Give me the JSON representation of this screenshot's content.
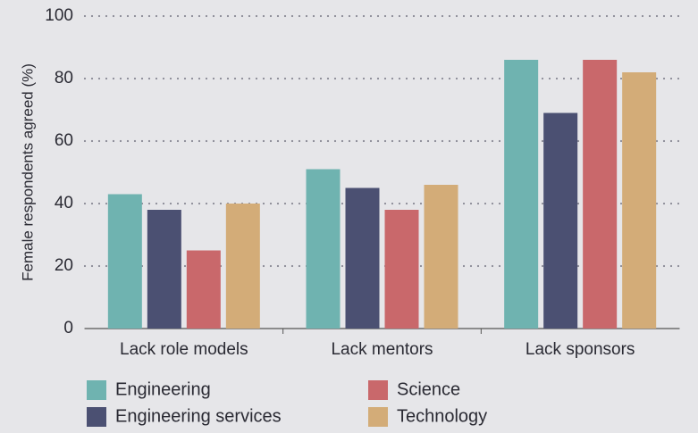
{
  "chart_data": {
    "type": "bar",
    "y_label": "Female respondents agreed (%)",
    "categories": [
      "Lack role models",
      "Lack mentors",
      "Lack sponsors"
    ],
    "series": [
      {
        "name": "Engineering",
        "color": "#6fb3b0",
        "values": [
          43,
          51,
          86
        ]
      },
      {
        "name": "Engineering services",
        "color": "#4b5072",
        "values": [
          38,
          45,
          69
        ]
      },
      {
        "name": "Science",
        "color": "#c9686b",
        "values": [
          25,
          38,
          86
        ]
      },
      {
        "name": "Technology",
        "color": "#d3ac78",
        "values": [
          40,
          46,
          82
        ]
      }
    ],
    "ylim": [
      0,
      100
    ],
    "yticks": [
      0,
      20,
      40,
      60,
      80,
      100
    ],
    "grid": true
  }
}
